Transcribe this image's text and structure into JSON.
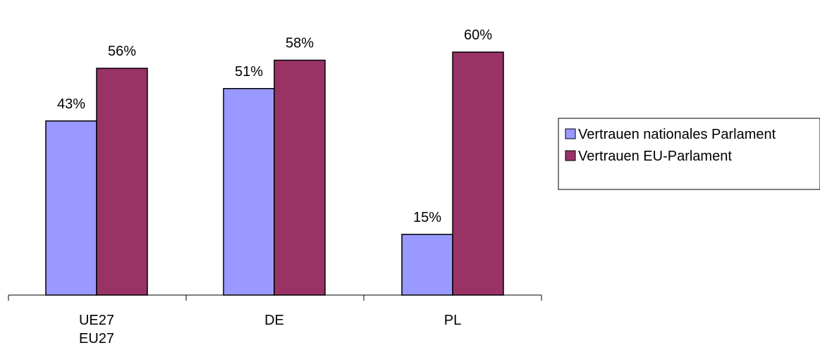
{
  "chart_data": {
    "type": "bar",
    "title": "",
    "xlabel": "",
    "ylabel": "",
    "ylim": [
      0,
      64
    ],
    "grid": false,
    "legend_position": "right",
    "categories": [
      [
        "UE27",
        "EU27"
      ],
      [
        "DE"
      ],
      [
        "PL"
      ]
    ],
    "series": [
      {
        "name": "Vertrauen nationales Parlament",
        "color": "#9999ff",
        "values": [
          43,
          51,
          15
        ],
        "labels": [
          "43%",
          "51%",
          "15%"
        ]
      },
      {
        "name": "Vertrauen EU-Parlament",
        "color": "#993366",
        "values": [
          56,
          58,
          60
        ],
        "labels": [
          "56%",
          "58%",
          "60%"
        ]
      }
    ]
  }
}
